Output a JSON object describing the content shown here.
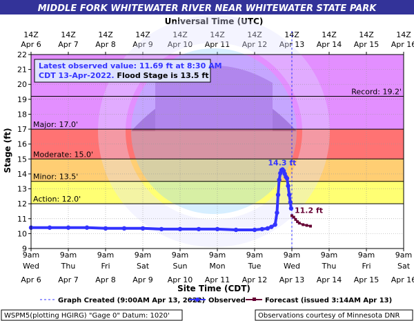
{
  "chart_data": {
    "type": "line",
    "title": "MIDDLE FORK WHITEWATER RIVER NEAR WHITEWATER STATE PARK",
    "top_axis_title": "Universal Time (UTC)",
    "xlabel": "Site Time (CDT)",
    "ylabel": "Stage (ft)",
    "ylim": [
      9,
      22
    ],
    "y_ticks": [
      9,
      10,
      11,
      12,
      13,
      14,
      15,
      16,
      17,
      18,
      19,
      20,
      21,
      22
    ],
    "x_range_days": [
      0,
      10
    ],
    "x_ticks": [
      {
        "day": 0,
        "hour": "9am",
        "weekday": "Wed",
        "date": "Apr 6"
      },
      {
        "day": 1,
        "hour": "9am",
        "weekday": "Thu",
        "date": "Apr 7"
      },
      {
        "day": 2,
        "hour": "9am",
        "weekday": "Fri",
        "date": "Apr 8"
      },
      {
        "day": 3,
        "hour": "9am",
        "weekday": "Sat",
        "date": "Apr 9"
      },
      {
        "day": 4,
        "hour": "9am",
        "weekday": "Sun",
        "date": "Apr 10"
      },
      {
        "day": 5,
        "hour": "9am",
        "weekday": "Mon",
        "date": "Apr 11"
      },
      {
        "day": 6,
        "hour": "9am",
        "weekday": "Tue",
        "date": "Apr 12"
      },
      {
        "day": 7,
        "hour": "9am",
        "weekday": "Wed",
        "date": "Apr 13"
      },
      {
        "day": 8,
        "hour": "9am",
        "weekday": "Thu",
        "date": "Apr 14"
      },
      {
        "day": 9,
        "hour": "9am",
        "weekday": "Fri",
        "date": "Apr 15"
      },
      {
        "day": 10,
        "hour": "9am",
        "weekday": "Sat",
        "date": "Apr 16"
      }
    ],
    "top_ticks": [
      {
        "day": 0,
        "hour": "14Z",
        "date": "Apr 6"
      },
      {
        "day": 1,
        "hour": "14Z",
        "date": "Apr 7"
      },
      {
        "day": 2,
        "hour": "14Z",
        "date": "Apr 8"
      },
      {
        "day": 3,
        "hour": "14Z",
        "date": "Apr 9"
      },
      {
        "day": 4,
        "hour": "14Z",
        "date": "Apr 10"
      },
      {
        "day": 5,
        "hour": "14Z",
        "date": "Apr 11"
      },
      {
        "day": 6,
        "hour": "14Z",
        "date": "Apr 12"
      },
      {
        "day": 7,
        "hour": "14Z",
        "date": "Apr 13"
      },
      {
        "day": 8,
        "hour": "14Z",
        "date": "Apr 14"
      },
      {
        "day": 9,
        "hour": "14Z",
        "date": "Apr 15"
      },
      {
        "day": 10,
        "hour": "14Z",
        "date": "Apr 16"
      }
    ],
    "flood_bands": [
      {
        "name": "Action",
        "from": 12.0,
        "to": 13.5,
        "color": "#ffff00",
        "label": "Action: 12.0'"
      },
      {
        "name": "Minor",
        "from": 13.5,
        "to": 15.0,
        "color": "#ffa500",
        "label": "Minor: 13.5'"
      },
      {
        "name": "Moderate",
        "from": 15.0,
        "to": 17.0,
        "color": "#ff0000",
        "label": "Moderate: 15.0'"
      },
      {
        "name": "Major",
        "from": 17.0,
        "to": 22.0,
        "color": "#cc33ff",
        "label": "Major: 17.0'"
      }
    ],
    "record": {
      "value": 19.2,
      "label": "Record: 19.2'"
    },
    "graph_created_day": 7.0,
    "info_box": {
      "line1": "Latest observed value: 11.69 ft at 8:30 AM",
      "line2_a": "CDT 13-Apr-2022.",
      "line2_b": " Flood Stage is 13.5 ft"
    },
    "annotations": [
      {
        "text": "14.3 ft",
        "day": 6.73,
        "value": 14.3,
        "color": "#3333ff"
      },
      {
        "text": "11.2 ft",
        "day": 7.0,
        "value": 11.2,
        "color": "#660033"
      }
    ],
    "series": [
      {
        "name": "Observed",
        "color": "#3333ff",
        "points": [
          [
            0.0,
            10.4
          ],
          [
            0.5,
            10.4
          ],
          [
            1.0,
            10.4
          ],
          [
            1.5,
            10.4
          ],
          [
            2.0,
            10.35
          ],
          [
            2.5,
            10.35
          ],
          [
            3.0,
            10.35
          ],
          [
            3.5,
            10.3
          ],
          [
            4.0,
            10.3
          ],
          [
            4.5,
            10.3
          ],
          [
            5.0,
            10.3
          ],
          [
            5.5,
            10.25
          ],
          [
            6.0,
            10.25
          ],
          [
            6.2,
            10.3
          ],
          [
            6.35,
            10.35
          ],
          [
            6.45,
            10.45
          ],
          [
            6.55,
            10.6
          ],
          [
            6.6,
            11.4
          ],
          [
            6.63,
            12.6
          ],
          [
            6.66,
            13.6
          ],
          [
            6.69,
            14.05
          ],
          [
            6.72,
            14.25
          ],
          [
            6.75,
            14.3
          ],
          [
            6.78,
            14.2
          ],
          [
            6.81,
            14.0
          ],
          [
            6.84,
            13.8
          ],
          [
            6.87,
            13.7
          ],
          [
            6.9,
            13.2
          ],
          [
            6.93,
            12.6
          ],
          [
            6.96,
            12.1
          ],
          [
            6.98,
            11.69
          ]
        ]
      },
      {
        "name": "Forecast (issued 3:14AM Apr 13)",
        "color": "#660033",
        "points": [
          [
            7.0,
            11.2
          ],
          [
            7.05,
            11.1
          ],
          [
            7.1,
            10.95
          ],
          [
            7.15,
            10.8
          ],
          [
            7.2,
            10.7
          ],
          [
            7.3,
            10.6
          ],
          [
            7.4,
            10.55
          ],
          [
            7.5,
            10.5
          ]
        ]
      }
    ]
  },
  "legend": {
    "graph_created": "Graph Created (9:00AM Apr 13, 2022)",
    "observed": "Observed",
    "forecast": "Forecast (issued 3:14AM Apr 13)"
  },
  "footer": {
    "left": "WSPM5(plotting HGIRG) \"Gage 0\" Datum: 1020'",
    "right": "Observations courtesy of Minnesota DNR"
  },
  "colors": {
    "title_bar": "#333399",
    "title_text": "#ffffff",
    "observed": "#3333ff",
    "forecast": "#660033"
  }
}
